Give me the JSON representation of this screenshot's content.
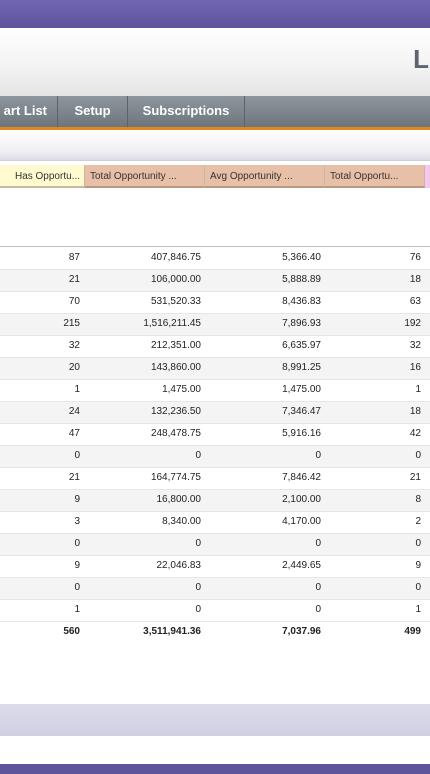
{
  "banner": {
    "letter": "L"
  },
  "nav": {
    "tabs": [
      {
        "label": "Chart List",
        "visible": "art List"
      },
      {
        "label": "Setup"
      },
      {
        "label": "Subscriptions"
      }
    ]
  },
  "table": {
    "headers": [
      "Has Opportu...",
      "Total Opportunity ...",
      "Avg Opportunity ...",
      "Total Opportu..."
    ],
    "rows": [
      [
        "87",
        "407,846.75",
        "5,366.40",
        "76"
      ],
      [
        "21",
        "106,000.00",
        "5,888.89",
        "18"
      ],
      [
        "70",
        "531,520.33",
        "8,436.83",
        "63"
      ],
      [
        "215",
        "1,516,211.45",
        "7,896.93",
        "192"
      ],
      [
        "32",
        "212,351.00",
        "6,635.97",
        "32"
      ],
      [
        "20",
        "143,860.00",
        "8,991.25",
        "16"
      ],
      [
        "1",
        "1,475.00",
        "1,475.00",
        "1"
      ],
      [
        "24",
        "132,236.50",
        "7,346.47",
        "18"
      ],
      [
        "47",
        "248,478.75",
        "5,916.16",
        "42"
      ],
      [
        "0",
        "0",
        "0",
        "0"
      ],
      [
        "21",
        "164,774.75",
        "7,846.42",
        "21"
      ],
      [
        "9",
        "16,800.00",
        "2,100.00",
        "8"
      ],
      [
        "3",
        "8,340.00",
        "4,170.00",
        "2"
      ],
      [
        "0",
        "0",
        "0",
        "0"
      ],
      [
        "9",
        "22,046.83",
        "2,449.65",
        "9"
      ],
      [
        "0",
        "0",
        "0",
        "0"
      ],
      [
        "1",
        "0",
        "0",
        "1"
      ]
    ],
    "totals": [
      "560",
      "3,511,941.36",
      "7,037.96",
      "499"
    ]
  },
  "colors": {
    "frame": "#6a60a8",
    "nav": "#7a848a",
    "nav_accent": "#e08a1e",
    "header_yellow": "#fffad0",
    "header_peach": "#e8c0a8",
    "header_pink": "#f5c8f0"
  }
}
